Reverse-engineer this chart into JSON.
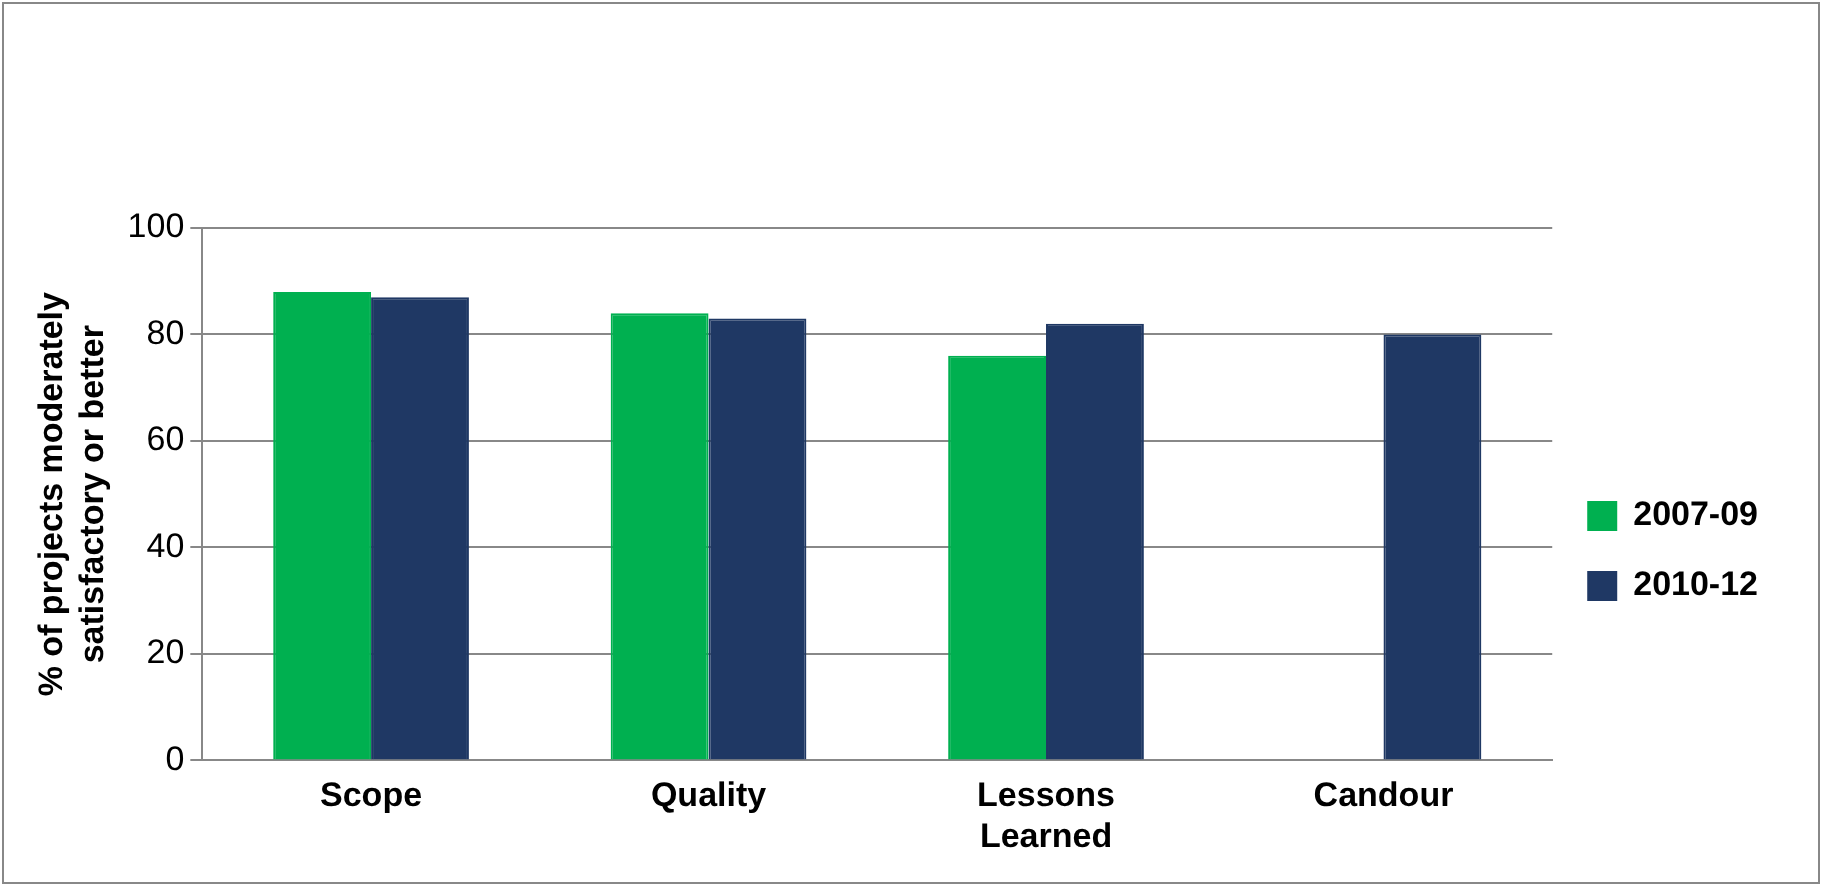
{
  "chart_data": {
    "type": "bar",
    "ylabel": "% of projects moderately satisfactory or better",
    "categories": [
      "Scope",
      "Quality",
      "Lessons Learned",
      "Candour"
    ],
    "series": [
      {
        "name": "2007-09",
        "color": "#00b050",
        "values": [
          88,
          84,
          76,
          null
        ]
      },
      {
        "name": "2010-12",
        "color": "#1f3864",
        "values": [
          87,
          83,
          82,
          80
        ]
      }
    ],
    "ylim": [
      0,
      100
    ],
    "yticks": [
      0,
      20,
      40,
      60,
      80,
      100
    ],
    "grid": "y",
    "legend": "right"
  }
}
